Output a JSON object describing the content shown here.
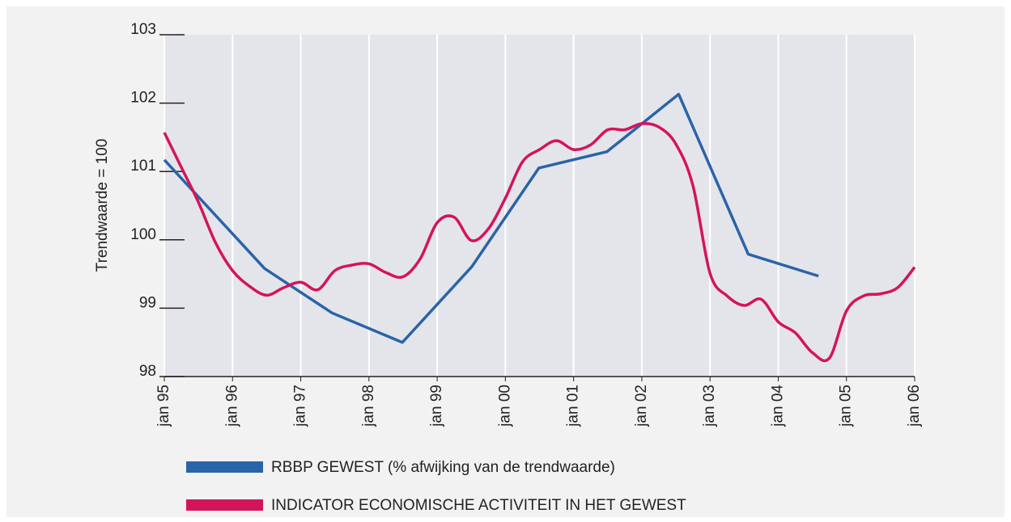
{
  "chart_data": {
    "type": "line",
    "ylabel": "Trendwaarde = 100",
    "xlim": [
      1995,
      2006
    ],
    "xticks": [
      {
        "value": 1995,
        "label": "jan 95"
      },
      {
        "value": 1996,
        "label": "jan 96"
      },
      {
        "value": 1997,
        "label": "jan 97"
      },
      {
        "value": 1998,
        "label": "jan 98"
      },
      {
        "value": 1999,
        "label": "jan 99"
      },
      {
        "value": 2000,
        "label": "jan 00"
      },
      {
        "value": 2001,
        "label": "jan 01"
      },
      {
        "value": 2002,
        "label": "jan 02"
      },
      {
        "value": 2003,
        "label": "jan 03"
      },
      {
        "value": 2004,
        "label": "jan 04"
      },
      {
        "value": 2005,
        "label": "jan 05"
      },
      {
        "value": 2006,
        "label": "jan 06"
      }
    ],
    "ylim": [
      98,
      103
    ],
    "yticks": [
      98,
      99,
      100,
      101,
      102,
      103
    ],
    "grid": true,
    "series": [
      {
        "name": "RBBP GEWEST (% afwijking van de trendwaarde)",
        "color": "#2a64a8",
        "x": [
          1995.0,
          1996.47,
          1997.46,
          1998.49,
          1999.51,
          2000.49,
          2001.49,
          2002.54,
          2003.56,
          2004.59
        ],
        "values": [
          101.17,
          99.58,
          98.93,
          98.5,
          99.61,
          101.05,
          101.29,
          102.13,
          99.79,
          99.47
        ]
      },
      {
        "name": "INDICATOR ECONOMISCHE ACTIVITEIT IN HET GEWEST",
        "color": "#d4145a",
        "x": [
          1995.0,
          1995.25,
          1995.5,
          1995.75,
          1996.0,
          1996.25,
          1996.5,
          1996.75,
          1997.0,
          1997.25,
          1997.5,
          1997.75,
          1998.0,
          1998.25,
          1998.5,
          1998.75,
          1999.0,
          1999.25,
          1999.5,
          1999.75,
          2000.0,
          2000.25,
          2000.5,
          2000.75,
          2001.0,
          2001.25,
          2001.5,
          2001.75,
          2002.0,
          2002.25,
          2002.5,
          2002.75,
          2003.0,
          2003.25,
          2003.5,
          2003.75,
          2004.0,
          2004.25,
          2004.5,
          2004.75,
          2005.0,
          2005.25,
          2005.5,
          2005.75,
          2006.0
        ],
        "values": [
          101.57,
          101.06,
          100.55,
          99.96,
          99.55,
          99.32,
          99.19,
          99.3,
          99.38,
          99.27,
          99.55,
          99.63,
          99.65,
          99.52,
          99.46,
          99.72,
          100.25,
          100.33,
          99.99,
          100.16,
          100.61,
          101.14,
          101.32,
          101.45,
          101.32,
          101.39,
          101.61,
          101.61,
          101.7,
          101.65,
          101.4,
          100.79,
          99.51,
          99.18,
          99.04,
          99.13,
          98.8,
          98.64,
          98.35,
          98.27,
          98.96,
          99.18,
          99.21,
          99.3,
          99.6
        ]
      }
    ]
  }
}
